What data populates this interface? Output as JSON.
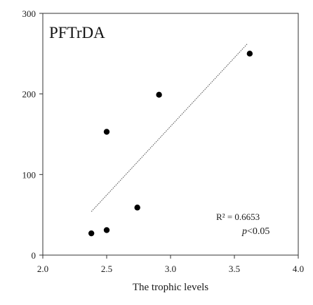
{
  "chart_data": {
    "type": "scatter",
    "title": "PFTrDA",
    "xlabel": "The trophic levels",
    "ylabel": "",
    "xlim": [
      2.0,
      4.0
    ],
    "ylim": [
      0,
      300
    ],
    "x_ticks": [
      "2.0",
      "2.5",
      "3.0",
      "3.5",
      "4.0"
    ],
    "y_ticks": [
      "0",
      "100",
      "200",
      "300"
    ],
    "points": [
      {
        "x": 2.38,
        "y": 27
      },
      {
        "x": 2.5,
        "y": 31
      },
      {
        "x": 2.5,
        "y": 153
      },
      {
        "x": 2.74,
        "y": 59
      },
      {
        "x": 2.91,
        "y": 199
      },
      {
        "x": 3.62,
        "y": 250
      }
    ],
    "trendline": {
      "x": [
        2.38,
        3.6
      ],
      "y": [
        54,
        262
      ]
    },
    "annotations": {
      "r_squared": "R² = 0.6653",
      "p_prefix": "p",
      "p_suffix": "<0.05"
    },
    "grid": false,
    "legend": "none",
    "colors": {
      "points": "#000000",
      "trendline": "#555555",
      "frame": "#333333"
    }
  }
}
